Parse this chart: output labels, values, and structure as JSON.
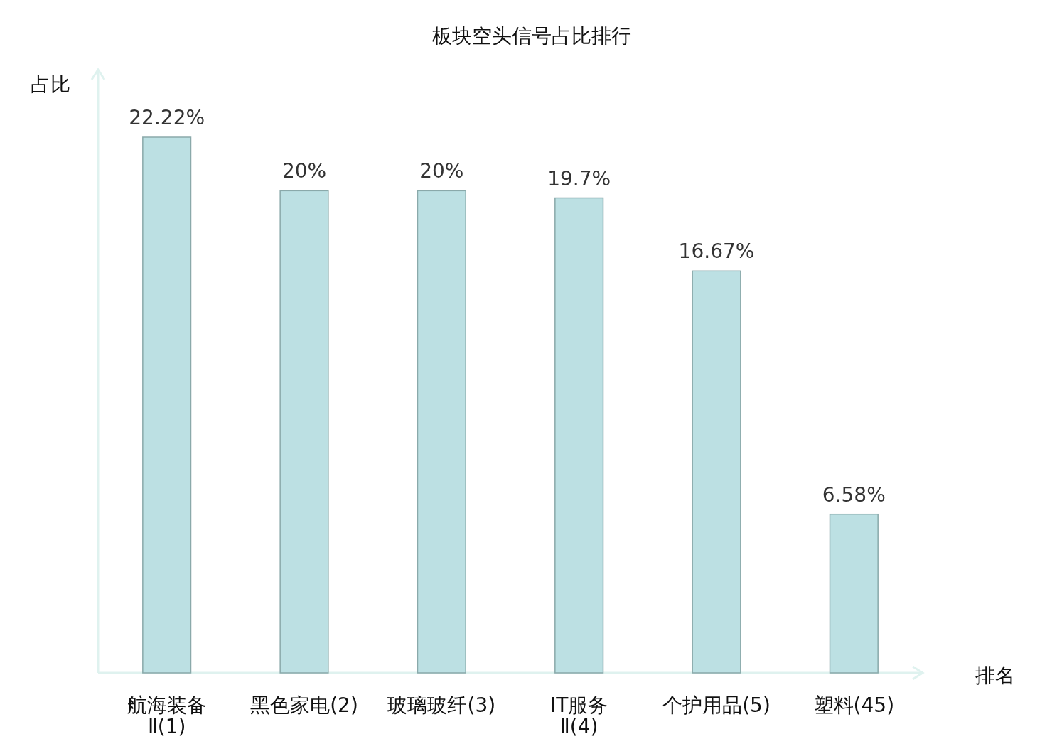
{
  "chart_data": {
    "type": "bar",
    "title": "板块空头信号占比排行",
    "xlabel": "排名",
    "ylabel": "占比",
    "categories": [
      "航海装备Ⅱ(1)",
      "黑色家电(2)",
      "玻璃玻纤(3)",
      "IT服务Ⅱ(4)",
      "个护用品(5)",
      "塑料(45)"
    ],
    "values": [
      22.22,
      20,
      20,
      19.7,
      16.67,
      6.58
    ],
    "value_labels": [
      "22.22%",
      "20%",
      "20%",
      "19.7%",
      "16.67%",
      "6.58%"
    ],
    "color": "#bce0e3"
  }
}
